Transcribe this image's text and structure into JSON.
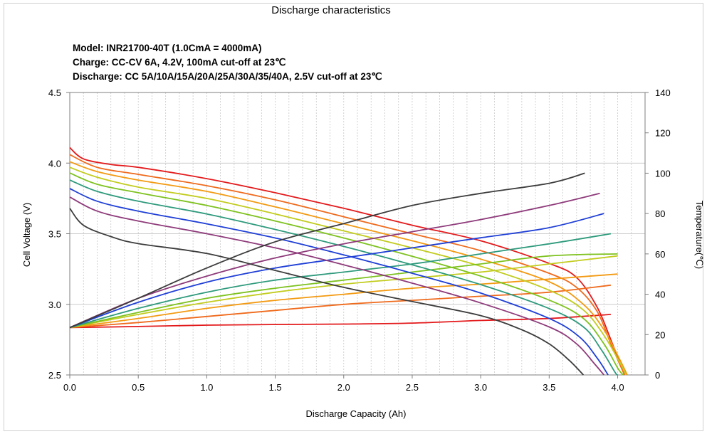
{
  "chart_data": {
    "type": "line",
    "title": "Discharge characteristics",
    "subtitle_lines": [
      "Model: INR21700-40T (1.0CmA = 4000mA)",
      "Charge: CC-CV 6A, 4.2V, 100mA  cut-off at 23℃",
      "Discharge: CC 5A/10A/15A/20A/25A/30A/35/40A,  2.5V cut-off at 23℃"
    ],
    "xlabel": "Discharge Capacity (Ah)",
    "ylabel": "Cell Voltage (V)",
    "y2label": "Temperature(℃)",
    "xlim": [
      0,
      4.2
    ],
    "ylim": [
      2.5,
      4.5
    ],
    "y2lim": [
      0,
      140
    ],
    "x_ticks": [
      "0.0",
      "0.5",
      "1.0",
      "1.5",
      "2.0",
      "2.5",
      "3.0",
      "3.5",
      "4.0"
    ],
    "y_ticks": [
      "2.5",
      "3.0",
      "3.5",
      "4.0",
      "4.5"
    ],
    "y2_ticks": [
      "0",
      "20",
      "40",
      "60",
      "80",
      "100",
      "120",
      "140"
    ],
    "grid": true,
    "series": [
      {
        "color": "#e31a1c",
        "voltage": [
          [
            0,
            4.11
          ],
          [
            0.1,
            4.03
          ],
          [
            0.3,
            3.99
          ],
          [
            0.5,
            3.97
          ],
          [
            1,
            3.89
          ],
          [
            1.5,
            3.79
          ],
          [
            2,
            3.68
          ],
          [
            2.5,
            3.56
          ],
          [
            3,
            3.45
          ],
          [
            3.5,
            3.29
          ],
          [
            3.7,
            3.19
          ],
          [
            3.85,
            2.98
          ],
          [
            3.95,
            2.75
          ],
          [
            4.05,
            2.5
          ]
        ],
        "temperature": [
          [
            0,
            23.5
          ],
          [
            0.5,
            24
          ],
          [
            1,
            24.7
          ],
          [
            1.5,
            25
          ],
          [
            2,
            25.2
          ],
          [
            2.5,
            25.7
          ],
          [
            3,
            27
          ],
          [
            3.5,
            28
          ],
          [
            3.95,
            30
          ]
        ]
      },
      {
        "color": "#ef6a1c",
        "voltage": [
          [
            0,
            4.06
          ],
          [
            0.2,
            3.97
          ],
          [
            0.5,
            3.92
          ],
          [
            1,
            3.84
          ],
          [
            1.5,
            3.74
          ],
          [
            2,
            3.62
          ],
          [
            2.5,
            3.5
          ],
          [
            3,
            3.38
          ],
          [
            3.5,
            3.22
          ],
          [
            3.7,
            3.12
          ],
          [
            3.85,
            2.95
          ],
          [
            3.95,
            2.72
          ],
          [
            4.05,
            2.5
          ]
        ],
        "temperature": [
          [
            0,
            23.5
          ],
          [
            0.5,
            26
          ],
          [
            1,
            29
          ],
          [
            1.5,
            32
          ],
          [
            2,
            35
          ],
          [
            2.5,
            37
          ],
          [
            3,
            39
          ],
          [
            3.5,
            41
          ],
          [
            3.95,
            44.5
          ]
        ]
      },
      {
        "color": "#f39a12",
        "voltage": [
          [
            0,
            4.01
          ],
          [
            0.2,
            3.94
          ],
          [
            0.5,
            3.88
          ],
          [
            1,
            3.8
          ],
          [
            1.5,
            3.69
          ],
          [
            2,
            3.57
          ],
          [
            2.5,
            3.45
          ],
          [
            3,
            3.32
          ],
          [
            3.5,
            3.16
          ],
          [
            3.75,
            3.0
          ],
          [
            3.9,
            2.82
          ],
          [
            4.02,
            2.6
          ],
          [
            4.07,
            2.5
          ]
        ],
        "temperature": [
          [
            0,
            23.5
          ],
          [
            0.5,
            28
          ],
          [
            1,
            33
          ],
          [
            1.5,
            37
          ],
          [
            2,
            40
          ],
          [
            2.5,
            43
          ],
          [
            3,
            45
          ],
          [
            3.5,
            47.5
          ],
          [
            4.0,
            50
          ]
        ]
      },
      {
        "color": "#c2cc1e",
        "voltage": [
          [
            0,
            3.97
          ],
          [
            0.2,
            3.9
          ],
          [
            0.5,
            3.83
          ],
          [
            1,
            3.75
          ],
          [
            1.5,
            3.64
          ],
          [
            2,
            3.52
          ],
          [
            2.5,
            3.4
          ],
          [
            3,
            3.27
          ],
          [
            3.5,
            3.1
          ],
          [
            3.75,
            2.96
          ],
          [
            3.9,
            2.78
          ],
          [
            4.02,
            2.58
          ],
          [
            4.06,
            2.5
          ]
        ],
        "temperature": [
          [
            0,
            23.5
          ],
          [
            0.5,
            30
          ],
          [
            1,
            36
          ],
          [
            1.5,
            41
          ],
          [
            2,
            45
          ],
          [
            2.5,
            48
          ],
          [
            3,
            51
          ],
          [
            3.5,
            55
          ],
          [
            4.0,
            59
          ]
        ]
      },
      {
        "color": "#7ec21f",
        "voltage": [
          [
            0,
            3.93
          ],
          [
            0.2,
            3.85
          ],
          [
            0.5,
            3.79
          ],
          [
            1,
            3.7
          ],
          [
            1.5,
            3.59
          ],
          [
            2,
            3.47
          ],
          [
            2.5,
            3.34
          ],
          [
            3,
            3.2
          ],
          [
            3.5,
            3.03
          ],
          [
            3.75,
            2.9
          ],
          [
            3.9,
            2.72
          ],
          [
            4.0,
            2.55
          ],
          [
            4.04,
            2.5
          ]
        ],
        "temperature": [
          [
            0,
            23.5
          ],
          [
            0.5,
            31
          ],
          [
            1,
            38
          ],
          [
            1.5,
            43
          ],
          [
            2,
            47
          ],
          [
            2.5,
            51
          ],
          [
            3,
            55
          ],
          [
            3.5,
            59
          ],
          [
            4.0,
            60
          ]
        ]
      },
      {
        "color": "#2e9a7c",
        "voltage": [
          [
            0,
            3.88
          ],
          [
            0.2,
            3.8
          ],
          [
            0.5,
            3.73
          ],
          [
            1,
            3.64
          ],
          [
            1.5,
            3.53
          ],
          [
            2,
            3.41
          ],
          [
            2.5,
            3.28
          ],
          [
            3,
            3.14
          ],
          [
            3.5,
            2.97
          ],
          [
            3.75,
            2.84
          ],
          [
            3.88,
            2.68
          ],
          [
            3.98,
            2.52
          ],
          [
            4.0,
            2.5
          ]
        ],
        "temperature": [
          [
            0,
            23.5
          ],
          [
            0.5,
            33
          ],
          [
            1,
            41
          ],
          [
            1.5,
            47
          ],
          [
            2,
            51
          ],
          [
            2.5,
            55
          ],
          [
            3,
            60
          ],
          [
            3.5,
            65
          ],
          [
            3.95,
            70
          ]
        ]
      },
      {
        "color": "#1f3fd6",
        "voltage": [
          [
            0,
            3.82
          ],
          [
            0.2,
            3.73
          ],
          [
            0.5,
            3.66
          ],
          [
            1,
            3.57
          ],
          [
            1.5,
            3.47
          ],
          [
            2,
            3.35
          ],
          [
            2.5,
            3.22
          ],
          [
            3,
            3.08
          ],
          [
            3.5,
            2.9
          ],
          [
            3.72,
            2.77
          ],
          [
            3.85,
            2.62
          ],
          [
            3.93,
            2.5
          ]
        ],
        "temperature": [
          [
            0,
            23.5
          ],
          [
            0.5,
            36
          ],
          [
            1,
            46
          ],
          [
            1.5,
            53
          ],
          [
            2,
            58
          ],
          [
            2.5,
            63
          ],
          [
            3,
            68
          ],
          [
            3.5,
            73
          ],
          [
            3.9,
            80
          ]
        ]
      },
      {
        "color": "#8e3a7a",
        "voltage": [
          [
            0,
            3.76
          ],
          [
            0.2,
            3.66
          ],
          [
            0.5,
            3.59
          ],
          [
            1,
            3.5
          ],
          [
            1.5,
            3.4
          ],
          [
            2,
            3.28
          ],
          [
            2.5,
            3.15
          ],
          [
            3,
            3.01
          ],
          [
            3.5,
            2.84
          ],
          [
            3.7,
            2.72
          ],
          [
            3.83,
            2.58
          ],
          [
            3.9,
            2.5
          ]
        ],
        "temperature": [
          [
            0,
            23.5
          ],
          [
            0.5,
            38
          ],
          [
            1,
            49
          ],
          [
            1.5,
            58
          ],
          [
            2,
            65
          ],
          [
            2.5,
            71
          ],
          [
            3,
            77
          ],
          [
            3.5,
            84
          ],
          [
            3.87,
            90
          ]
        ]
      },
      {
        "color": "#3c3c3c",
        "voltage": [
          [
            0,
            3.68
          ],
          [
            0.1,
            3.56
          ],
          [
            0.3,
            3.48
          ],
          [
            0.5,
            3.43
          ],
          [
            1,
            3.36
          ],
          [
            1.5,
            3.24
          ],
          [
            2,
            3.12
          ],
          [
            2.5,
            3.02
          ],
          [
            3,
            2.92
          ],
          [
            3.3,
            2.82
          ],
          [
            3.5,
            2.72
          ],
          [
            3.65,
            2.6
          ],
          [
            3.75,
            2.5
          ]
        ],
        "temperature": [
          [
            0,
            23.5
          ],
          [
            0.5,
            38
          ],
          [
            1,
            53
          ],
          [
            1.5,
            66
          ],
          [
            2,
            75
          ],
          [
            2.5,
            84
          ],
          [
            3,
            90
          ],
          [
            3.5,
            95
          ],
          [
            3.76,
            100
          ]
        ]
      }
    ]
  }
}
